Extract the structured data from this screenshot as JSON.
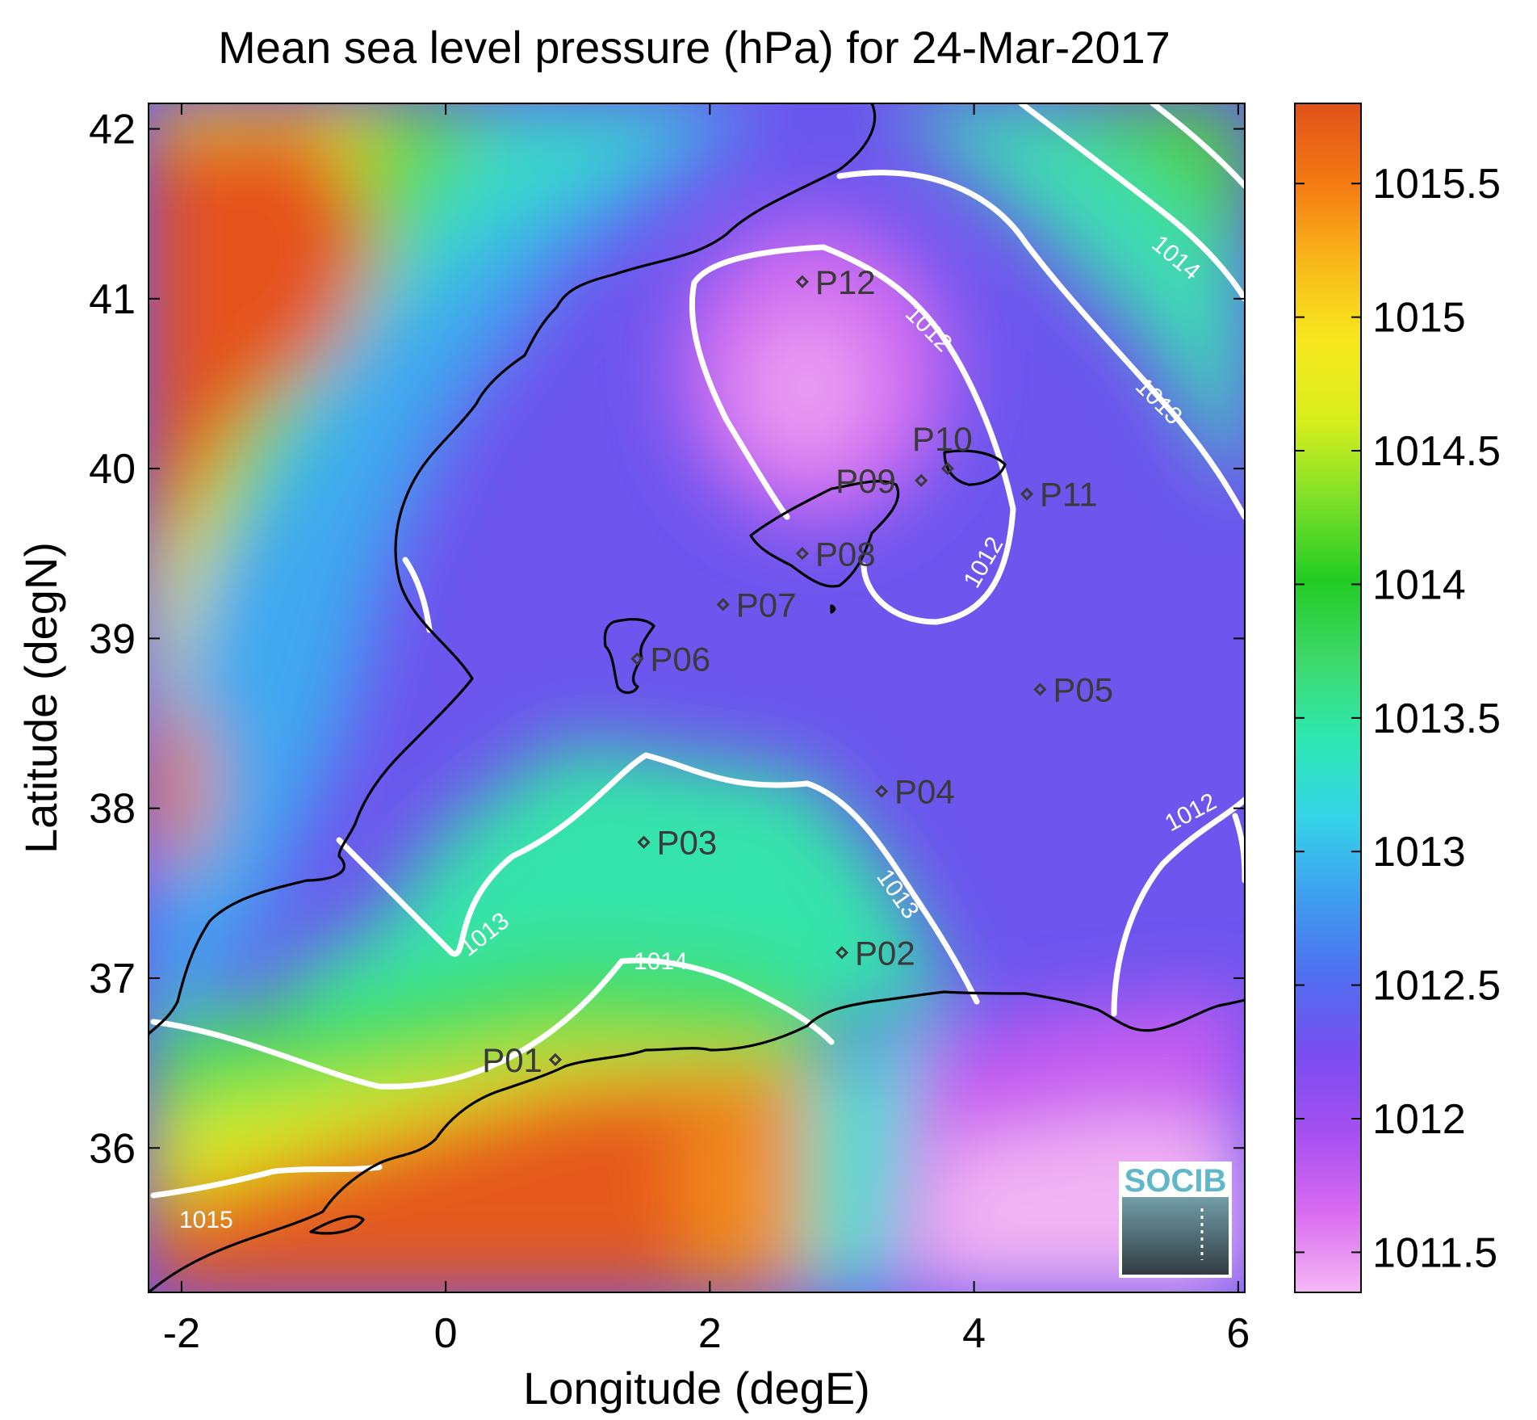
{
  "title": "Mean sea level pressure (hPa) for 24-Mar-2017",
  "x_axis": {
    "label": "Longitude (degE)",
    "ticks": [
      "-2",
      "0",
      "2",
      "4",
      "6"
    ],
    "range": [
      -2.25,
      6.05
    ]
  },
  "y_axis": {
    "label": "Latitude (degN)",
    "ticks": [
      "36",
      "37",
      "38",
      "39",
      "40",
      "41",
      "42"
    ],
    "range": [
      35.15,
      42.15
    ]
  },
  "colorbar": {
    "ticks": [
      "1011.5",
      "1012",
      "1012.5",
      "1013",
      "1013.5",
      "1014",
      "1014.5",
      "1015",
      "1015.5"
    ],
    "range": [
      1011.35,
      1015.8
    ],
    "colormap": [
      "#f5b8f5",
      "#d96cf0",
      "#a64ff0",
      "#7a4ef0",
      "#4f6ff0",
      "#3f9ff0",
      "#35d4e8",
      "#2ee8b0",
      "#3ed86a",
      "#22cc22",
      "#7ee02a",
      "#d7ee1c",
      "#f7e81e",
      "#f8b81a",
      "#f47a12",
      "#e0511a"
    ]
  },
  "contour_labels": [
    "1012",
    "1012",
    "1012",
    "1013",
    "1013",
    "1013",
    "1014",
    "1014",
    "1015"
  ],
  "stations": [
    {
      "id": "P01",
      "lon": 0.83,
      "lat": 36.52
    },
    {
      "id": "P02",
      "lon": 3.0,
      "lat": 37.15
    },
    {
      "id": "P03",
      "lon": 1.5,
      "lat": 37.8
    },
    {
      "id": "P04",
      "lon": 3.3,
      "lat": 38.1
    },
    {
      "id": "P05",
      "lon": 4.5,
      "lat": 38.7
    },
    {
      "id": "P06",
      "lon": 1.45,
      "lat": 38.88
    },
    {
      "id": "P07",
      "lon": 2.1,
      "lat": 39.2
    },
    {
      "id": "P08",
      "lon": 2.7,
      "lat": 39.5
    },
    {
      "id": "P09",
      "lon": 3.6,
      "lat": 39.93
    },
    {
      "id": "P10",
      "lon": 3.8,
      "lat": 40.0
    },
    {
      "id": "P11",
      "lon": 4.4,
      "lat": 39.85
    },
    {
      "id": "P12",
      "lon": 2.7,
      "lat": 41.1
    }
  ],
  "logo": {
    "text": "SOCIB",
    "color": "#5fb7c9"
  },
  "colors": {
    "contour": "#ffffff",
    "coast": "#000000",
    "station": "#3a3a3a"
  }
}
